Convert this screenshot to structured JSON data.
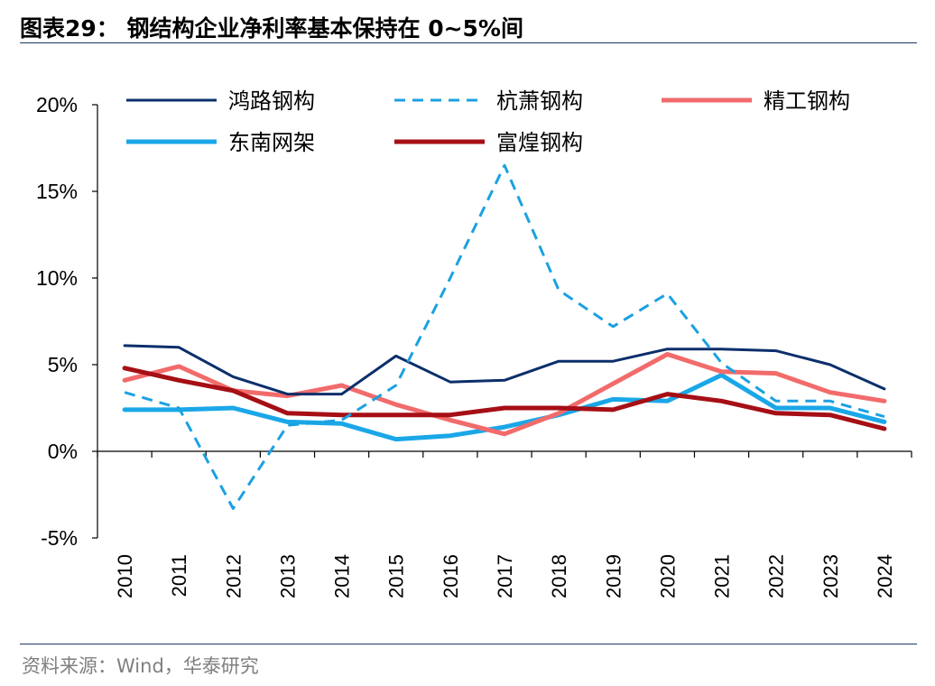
{
  "header": {
    "title": "图表29：   钢结构企业净利率基本保持在 0~5%间"
  },
  "footer": {
    "source": "资料来源：Wind，华泰研究"
  },
  "chart_data": {
    "type": "line",
    "title": "图表29：   钢结构企业净利率基本保持在 0~5%间",
    "xlabel": "",
    "ylabel": "",
    "ylim": [
      -5,
      20
    ],
    "yticks": [
      -5,
      0,
      5,
      10,
      15,
      20
    ],
    "ytick_labels": [
      "-5%",
      "0%",
      "5%",
      "10%",
      "15%",
      "20%"
    ],
    "categories": [
      "2010",
      "2011",
      "2012",
      "2013",
      "2014",
      "2015",
      "2016",
      "2017",
      "2018",
      "2019",
      "2020",
      "2021",
      "2022",
      "2023",
      "2024"
    ],
    "grid": false,
    "legend_position": "top",
    "series": [
      {
        "name": "鸿路钢构",
        "color": "#0c2f6b",
        "style": "solid",
        "width": 3,
        "values": [
          6.1,
          6.0,
          4.3,
          3.3,
          3.3,
          5.5,
          4.0,
          4.1,
          5.2,
          5.2,
          5.9,
          5.9,
          5.8,
          5.0,
          3.6
        ]
      },
      {
        "name": "杭萧钢构",
        "color": "#1ba1e2",
        "style": "dashed",
        "width": 3,
        "values": [
          3.4,
          2.5,
          -3.3,
          1.5,
          1.8,
          3.8,
          10.0,
          16.5,
          9.3,
          7.2,
          9.1,
          5.1,
          2.9,
          2.9,
          2.0
        ]
      },
      {
        "name": "精工钢构",
        "color": "#f26b6b",
        "style": "solid",
        "width": 5,
        "values": [
          4.1,
          4.9,
          3.5,
          3.2,
          3.8,
          2.7,
          1.8,
          1.0,
          2.2,
          3.9,
          5.6,
          4.6,
          4.5,
          3.4,
          2.9
        ]
      },
      {
        "name": "东南网架",
        "color": "#1aa7e8",
        "style": "solid",
        "width": 5,
        "values": [
          2.4,
          2.4,
          2.5,
          1.7,
          1.6,
          0.7,
          0.9,
          1.4,
          2.1,
          3.0,
          2.9,
          4.4,
          2.5,
          2.5,
          1.7
        ]
      },
      {
        "name": "富煌钢构",
        "color": "#a50f15",
        "style": "solid",
        "width": 5,
        "values": [
          4.8,
          4.1,
          3.5,
          2.2,
          2.1,
          2.1,
          2.1,
          2.5,
          2.5,
          2.4,
          3.3,
          2.9,
          2.2,
          2.1,
          1.3
        ]
      }
    ]
  }
}
